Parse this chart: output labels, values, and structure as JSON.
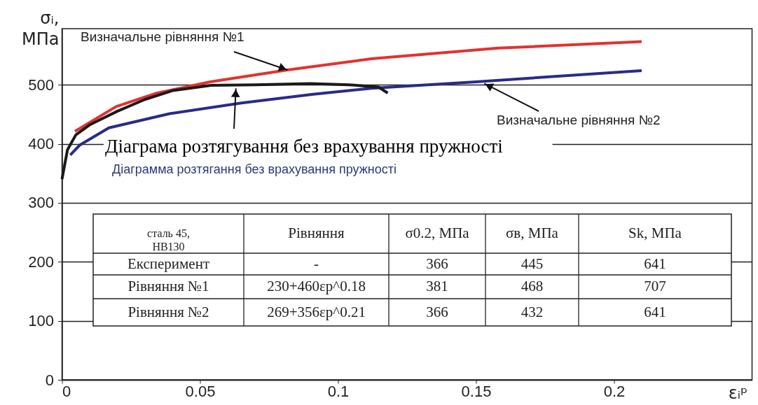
{
  "chart_data": {
    "type": "line",
    "xlabel": "εᵢᵖ",
    "ylabel": "σᵢ,\nМПа",
    "xlim": [
      0,
      0.25
    ],
    "ylim": [
      0,
      595
    ],
    "xticks": [
      0,
      0.05,
      0.1,
      0.15,
      0.2
    ],
    "yticks": [
      0,
      100,
      200,
      300,
      400,
      500
    ],
    "grid": "y",
    "legend": false,
    "marker": "none",
    "line_style": "solid",
    "series": [
      {
        "color": "#e2322f",
        "x": [
          0.0047,
          0.0196,
          0.0337,
          0.0537,
          0.0817,
          0.112,
          0.158,
          0.21
        ],
        "values": [
          421,
          463,
          485,
          505,
          525,
          544,
          562,
          573
        ]
      },
      {
        "color": "#2a2a8a",
        "x": [
          0.003,
          0.0065,
          0.017,
          0.039,
          0.065,
          0.091,
          0.112,
          0.15,
          0.21
        ],
        "values": [
          381,
          398,
          427,
          451,
          469,
          484,
          494,
          505,
          524
        ]
      },
      {
        "color": "#1a1a1a",
        "x": [
          0,
          0.002,
          0.005,
          0.01,
          0.02,
          0.03,
          0.04,
          0.054,
          0.07,
          0.09,
          0.104,
          0.1147,
          0.118
        ],
        "values": [
          340,
          390,
          415,
          432,
          455,
          475,
          490,
          499,
          500,
          502,
          500,
          496,
          486
        ]
      }
    ],
    "annotations": [
      {
        "text": "Визначальне рівняння №1",
        "x": 0.0817,
        "y": 525
      },
      {
        "text": "Визначальне рівняння №2",
        "x": 0.153,
        "y": 502
      },
      {
        "text": "Діаграма розтягування без врахування пружності",
        "x": 0.063,
        "y": 494
      },
      "Діаграмма розтягання без врахування пружності",
      "сталь 45,\nHB130",
      "Рівняння",
      "σ0.2, МПа",
      "σв, МПа",
      "Sk, МПа",
      "Експеримент",
      "-",
      "366",
      "445",
      "641",
      "Рівняння №1",
      "230+460εp^0.18",
      "381",
      "468",
      "707",
      "Рівняння №2",
      "269+356εp^0.21",
      "366",
      "432",
      "641"
    ]
  }
}
